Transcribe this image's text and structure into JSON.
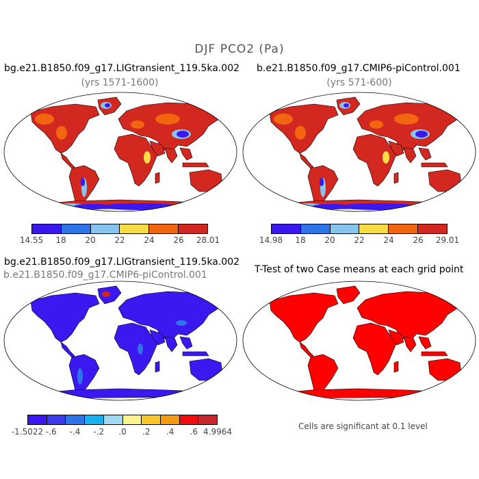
{
  "figure": {
    "title": "DJF PCO2 (Pa)",
    "panels": [
      {
        "title": "bg.e21.B1850.f09_g17.LIGtransient_119.5ka.002",
        "subtitle": "(yrs 1571-1600)",
        "colorbar": {
          "colors": [
            "#3b17f0",
            "#2e74e8",
            "#86c5ef",
            "#f6dd46",
            "#f2660f",
            "#d3281f"
          ],
          "labels": [
            "14.55",
            "18",
            "20",
            "22",
            "24",
            "26",
            "28.01"
          ]
        }
      },
      {
        "title": "b.e21.B1850.f09_g17.CMIP6-piControl.001",
        "subtitle": "(yrs 571-600)",
        "colorbar": {
          "colors": [
            "#3b17f0",
            "#2e74e8",
            "#86c5ef",
            "#f6dd46",
            "#f2660f",
            "#d3281f"
          ],
          "labels": [
            "14.98",
            "18",
            "20",
            "22",
            "24",
            "26",
            "29.01"
          ]
        }
      },
      {
        "title": "bg.e21.B1850.f09_g17.LIGtransient_119.5ka.002",
        "subtitle": "b.e21.B1850.f09_g17.CMIP6-piControl.001",
        "colorbar": {
          "colors": [
            "#3b17f0",
            "#3a3bea",
            "#2e74e8",
            "#18b0ef",
            "#a0d8f0",
            "#fdf38f",
            "#f7c52c",
            "#f39a14",
            "#ef0d0d",
            "#c7262b"
          ],
          "labels": [
            "-1.5022",
            "-.6",
            "-.4",
            "-.2",
            ".0",
            ".2",
            ".4",
            ".6",
            "4.9964"
          ]
        }
      },
      {
        "title": "T-Test of two Case means at each grid point",
        "footnote": "Cells are significant at 0.1 level"
      }
    ],
    "map_colors": {
      "ocean": "#ffffff",
      "land_base_mean": "#d3281f",
      "land_warm_mean": "#f2660f",
      "land_high_mean": "#86c5ef",
      "land_peak_mean": "#3b17f0",
      "land_yellow_mean": "#f6dd46",
      "land_diff": "#3b17f0",
      "land_diff_light": "#2e74e8",
      "land_ttest": "#ff0000",
      "outline": "#000000"
    }
  }
}
